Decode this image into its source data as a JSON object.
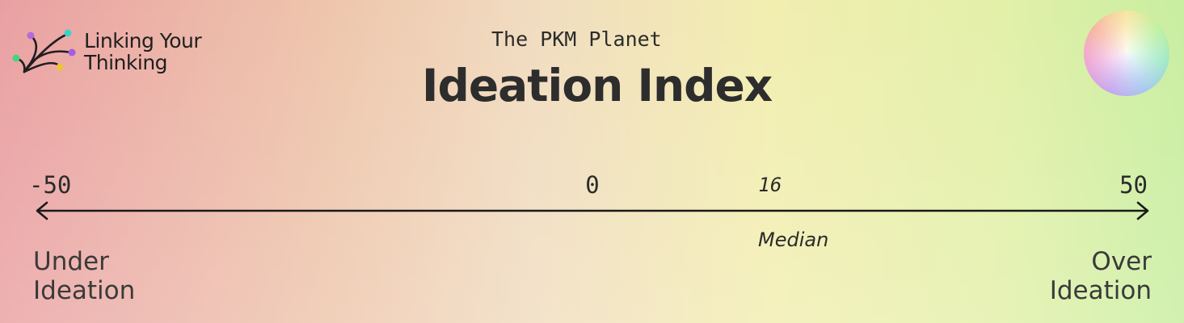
{
  "brand": {
    "line1": "Linking Your",
    "line2": "Thinking"
  },
  "header": {
    "subtitle": "The PKM Planet",
    "title": "Ideation Index"
  },
  "scale": {
    "min": -50,
    "max": 50,
    "ticks": [
      {
        "value": -50,
        "label": "-50"
      },
      {
        "value": 0,
        "label": "0"
      },
      {
        "value": 50,
        "label": "50"
      }
    ],
    "median": {
      "value": 16,
      "label": "16",
      "caption": "Median"
    },
    "left_end": {
      "line1": "Under",
      "line2": "Ideation"
    },
    "right_end": {
      "line1": "Over",
      "line2": "Ideation"
    }
  },
  "colors": {
    "text": "#2b2b2b",
    "logo_dots": [
      "#b46ad8",
      "#3ed0c8",
      "#4ad27a",
      "#a35ee0",
      "#f0c23a"
    ]
  }
}
